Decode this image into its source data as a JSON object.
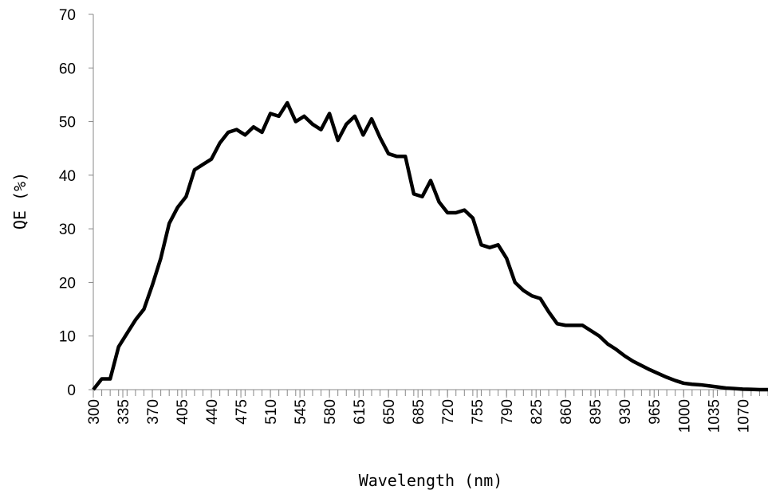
{
  "chart_data": {
    "type": "line",
    "xlabel": "Wavelength (nm)",
    "ylabel": "QE (%)",
    "x": [
      300,
      310,
      320,
      330,
      340,
      350,
      360,
      370,
      380,
      390,
      400,
      410,
      420,
      430,
      440,
      450,
      460,
      470,
      480,
      490,
      500,
      510,
      520,
      530,
      540,
      550,
      560,
      570,
      580,
      590,
      600,
      610,
      620,
      630,
      640,
      650,
      660,
      670,
      680,
      690,
      700,
      710,
      720,
      730,
      740,
      750,
      760,
      770,
      780,
      790,
      800,
      810,
      820,
      830,
      840,
      850,
      860,
      870,
      880,
      890,
      900,
      910,
      920,
      930,
      940,
      950,
      960,
      970,
      980,
      990,
      1000,
      1010,
      1020,
      1030,
      1040,
      1050,
      1060,
      1070,
      1080,
      1090,
      1100
    ],
    "series": [
      {
        "name": "QE",
        "color": "#000000",
        "values": [
          0,
          2,
          2,
          8,
          10.5,
          13,
          15,
          19.5,
          24.5,
          31,
          34,
          36,
          41,
          42,
          43,
          46,
          48,
          48.5,
          47.5,
          49,
          48,
          51.5,
          51,
          53.5,
          50,
          51,
          49.5,
          48.5,
          51.5,
          46.5,
          49.5,
          51,
          47.5,
          50.5,
          47,
          44,
          43.5,
          43.5,
          36.5,
          36,
          39,
          35,
          33,
          33,
          33.5,
          32,
          27,
          26.5,
          27,
          24.5,
          20,
          18.5,
          17.5,
          17,
          14.5,
          12.3,
          12,
          12,
          12,
          11,
          10,
          8.5,
          7.5,
          6.3,
          5.3,
          4.5,
          3.7,
          3,
          2.3,
          1.7,
          1.2,
          1,
          0.9,
          0.7,
          0.5,
          0.3,
          0.2,
          0.1,
          0.05,
          0,
          0
        ]
      }
    ],
    "xlim": [
      300,
      1100
    ],
    "xticks": [
      300,
      335,
      370,
      405,
      440,
      475,
      510,
      545,
      580,
      615,
      650,
      685,
      720,
      755,
      790,
      825,
      860,
      895,
      930,
      965,
      1000,
      1035,
      1070
    ],
    "ylim": [
      0,
      70
    ],
    "yticks": [
      0,
      10,
      20,
      30,
      40,
      50,
      60,
      70
    ],
    "grid": false
  }
}
